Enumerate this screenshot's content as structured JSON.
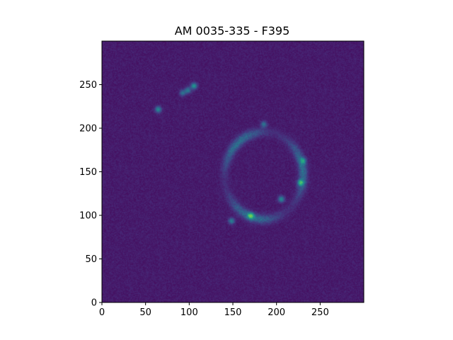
{
  "chart_data": {
    "type": "heatmap",
    "title": "AM 0035-335 - F395",
    "xlabel": "",
    "ylabel": "",
    "xlim": [
      0,
      300
    ],
    "ylim": [
      0,
      300
    ],
    "origin": "lower",
    "colormap": "viridis",
    "grid": false,
    "colorbar": false,
    "x_ticks": [
      0,
      50,
      100,
      150,
      200,
      250
    ],
    "y_ticks": [
      0,
      50,
      100,
      150,
      200,
      250
    ],
    "x_tick_labels": [
      "0",
      "50",
      "100",
      "150",
      "200",
      "250"
    ],
    "y_tick_labels": [
      "0",
      "50",
      "100",
      "150",
      "200",
      "250"
    ],
    "background_level": 0.08,
    "features": [
      {
        "kind": "ring",
        "center": [
          185,
          145
        ],
        "radius_x": 45,
        "radius_y": 50,
        "brightness": 0.3
      },
      {
        "kind": "knot",
        "x": 105,
        "y": 248,
        "brightness": 0.45
      },
      {
        "kind": "knot",
        "x": 98,
        "y": 243,
        "brightness": 0.35
      },
      {
        "kind": "knot",
        "x": 92,
        "y": 240,
        "brightness": 0.3
      },
      {
        "kind": "knot",
        "x": 64,
        "y": 221,
        "brightness": 0.42
      },
      {
        "kind": "knot",
        "x": 170,
        "y": 99,
        "brightness": 0.5
      },
      {
        "kind": "knot",
        "x": 148,
        "y": 93,
        "brightness": 0.35
      },
      {
        "kind": "knot",
        "x": 227,
        "y": 137,
        "brightness": 0.5
      },
      {
        "kind": "knot",
        "x": 205,
        "y": 118,
        "brightness": 0.4
      },
      {
        "kind": "knot",
        "x": 230,
        "y": 162,
        "brightness": 0.35
      },
      {
        "kind": "knot",
        "x": 185,
        "y": 204,
        "brightness": 0.3
      }
    ],
    "colors": {
      "low": "#440154",
      "background": "#462e83",
      "mid": "#31688e",
      "high": "#35b779"
    }
  }
}
